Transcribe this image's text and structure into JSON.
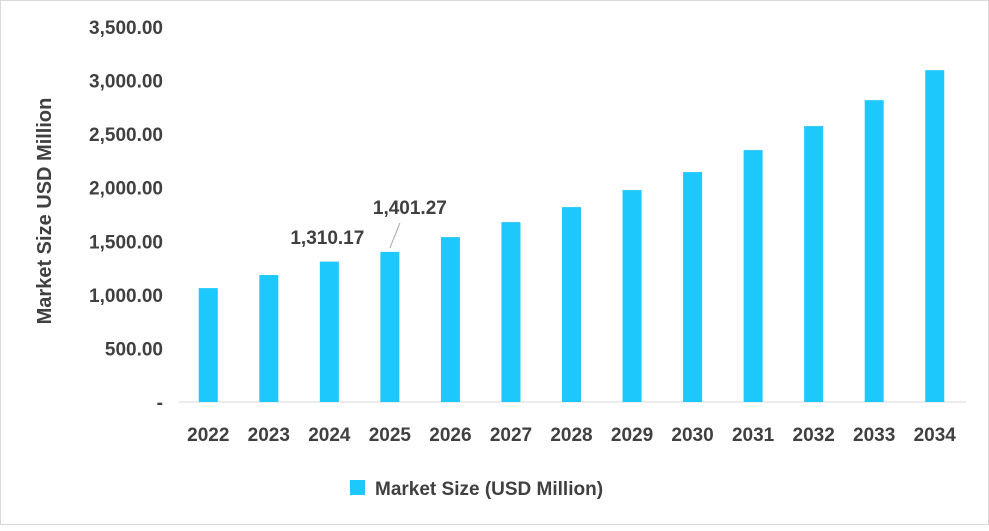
{
  "chart_data": {
    "type": "bar",
    "title": "",
    "xlabel": "",
    "ylabel": "Market Size USD Million",
    "categories": [
      "2022",
      "2023",
      "2024",
      "2025",
      "2026",
      "2027",
      "2028",
      "2029",
      "2030",
      "2031",
      "2032",
      "2033",
      "2034"
    ],
    "series": [
      {
        "name": "Market Size (USD Million)",
        "values": [
          1063,
          1185,
          1310.17,
          1401.27,
          1539,
          1679,
          1819,
          1978,
          2146,
          2351,
          2575,
          2817,
          3097
        ]
      }
    ],
    "ylim": [
      0,
      3500
    ],
    "yticks": [
      0,
      500,
      1000,
      1500,
      2000,
      2500,
      3000,
      3500
    ],
    "ytick_labels": [
      "-",
      "500.00",
      "1,000.00",
      "1,500.00",
      "2,000.00",
      "2,500.00",
      "3,000.00",
      "3,500.00"
    ],
    "data_labels": [
      {
        "category": "2024",
        "text": "1,310.17"
      },
      {
        "category": "2025",
        "text": "1,401.27"
      }
    ],
    "grid": false,
    "legend_position": "bottom",
    "colors": {
      "bar": "#1CC8FC",
      "text": "#404040",
      "axis": "#d9d9d9"
    }
  }
}
